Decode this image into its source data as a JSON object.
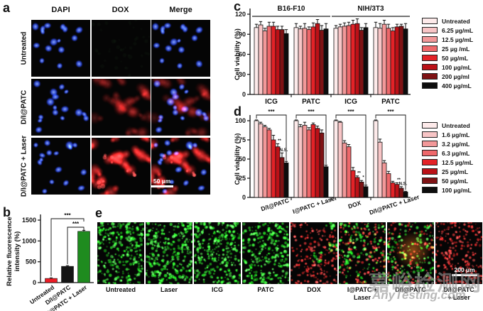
{
  "panels": {
    "a": {
      "letter": "a",
      "columns": [
        "DAPI",
        "DOX",
        "Merge"
      ],
      "rows": [
        "Untreated",
        "D/I@PATC",
        "D/I@PATC + Laser"
      ],
      "scale_bar": "50 µm",
      "image_styles": [
        [
          "blue-nuclei",
          "blank-dark",
          "blue-nuclei"
        ],
        [
          "blue-nuclei",
          "red-dim",
          "merge-dim"
        ],
        [
          "blue-nuclei",
          "red-bright",
          "merge-bright"
        ]
      ]
    },
    "b": {
      "letter": "b"
    },
    "c": {
      "letter": "c"
    },
    "d": {
      "letter": "d"
    },
    "e": {
      "letter": "e",
      "scale_bar": "200 µm",
      "images": [
        {
          "label_lines": [
            "Untreated"
          ],
          "content": "live-green"
        },
        {
          "label_lines": [
            "Laser"
          ],
          "content": "live-green"
        },
        {
          "label_lines": [
            "ICG"
          ],
          "content": "live-green"
        },
        {
          "label_lines": [
            "PATC"
          ],
          "content": "live-green"
        },
        {
          "label_lines": [
            "DOX"
          ],
          "content": "dead-red-sparse-green"
        },
        {
          "label_lines": [
            "I@PATC + Laser"
          ],
          "content": "mixed-live-dead"
        },
        {
          "label_lines": [
            "D/I@PATC"
          ],
          "content": "mixed-live-dead-orange"
        },
        {
          "label_lines": [
            "D/I@PATC",
            "+ Laser"
          ],
          "content": "dead-red"
        }
      ]
    }
  },
  "chart_data": [
    {
      "id": "b",
      "type": "bar",
      "ylabel_lines": [
        "Relative fluorescence",
        "intensity  (%)"
      ],
      "categories": [
        "Untreated",
        "D/I@PATC",
        "D/I@PATC + Laser"
      ],
      "values": [
        100,
        390,
        1230
      ],
      "errors": [
        15,
        18,
        25
      ],
      "bar_colors": [
        "#ee1c25",
        "#141414",
        "#1f8b1f"
      ],
      "ylim": [
        0,
        1500
      ],
      "yticks": [
        0,
        500,
        1000,
        1500
      ],
      "grid": false,
      "significance": [
        {
          "from": 0,
          "to": 2,
          "label": "***"
        },
        {
          "from": 1,
          "to": 2,
          "label": "***"
        }
      ]
    },
    {
      "id": "c",
      "type": "grouped-bar",
      "ylabel": "Cell viability (%)",
      "ylim": [
        0,
        120
      ],
      "yticks": [
        0,
        30,
        60,
        90,
        120
      ],
      "grid": false,
      "legend_position": "right",
      "legend": [
        "Untreated",
        "6.25 µg/mL",
        "12.5 µg/mL",
        "25 µg /mL",
        "50 µg/mL",
        "100 µg/mL",
        "200 µg/ml",
        "400 µg/mL"
      ],
      "palette": [
        "#fdeaea",
        "#f8c5c6",
        "#f29899",
        "#ee686b",
        "#e32227",
        "#bb1117",
        "#7e1214",
        "#0d0d0d"
      ],
      "section_headers": [
        {
          "label": "B16-F10",
          "span": [
            0,
            1
          ]
        },
        {
          "label": "NIH/3T3",
          "span": [
            2,
            3
          ]
        }
      ],
      "groups": [
        {
          "label": "ICG",
          "values": [
            100,
            104,
            95,
            102,
            102,
            97,
            97,
            91
          ],
          "errors": [
            5,
            5,
            4,
            6,
            6,
            5,
            5,
            6
          ]
        },
        {
          "label": "PATC",
          "values": [
            100,
            98,
            99,
            97,
            101,
            106,
            96,
            98
          ],
          "errors": [
            6,
            4,
            7,
            4,
            6,
            6,
            7,
            8
          ]
        },
        {
          "label": "ICG",
          "values": [
            99,
            101,
            102,
            103,
            105,
            106,
            96,
            100
          ],
          "errors": [
            4,
            4,
            5,
            5,
            6,
            7,
            4,
            6
          ]
        },
        {
          "label": "PATC",
          "values": [
            100,
            99,
            105,
            99,
            95,
            101,
            102,
            98
          ],
          "errors": [
            8,
            7,
            6,
            6,
            5,
            4,
            3,
            8
          ]
        }
      ]
    },
    {
      "id": "d",
      "type": "grouped-bar",
      "ylabel": "Cell viability (%)",
      "ylim": [
        0,
        100
      ],
      "yticks": [
        0,
        25,
        50,
        75,
        100
      ],
      "grid": false,
      "legend_position": "right",
      "legend": [
        "Untreated",
        "1.6 µg/mL",
        "3.2 µg/mL",
        "6.3 µg/mL",
        "12.5 µg/mL",
        "25 µg/mL",
        "50 µg/mL",
        "100 µg/mL"
      ],
      "palette": [
        "#fdeaea",
        "#f8c5c6",
        "#f29899",
        "#ee686b",
        "#e32227",
        "#bb1117",
        "#7e1214",
        "#0d0d0d"
      ],
      "groups": [
        {
          "label": "D/I@PATC",
          "values": [
            100,
            96,
            92,
            88,
            75,
            66,
            52,
            45
          ],
          "errors": [
            1,
            2,
            2,
            2,
            6,
            4,
            6,
            2
          ],
          "bracket": "***",
          "marks": [
            {
              "bar": 5,
              "text": "**"
            },
            {
              "bar": 6,
              "text": "N.S."
            }
          ]
        },
        {
          "label": "I@PATC + Laser",
          "values": [
            100,
            92,
            94,
            88,
            95,
            90,
            84,
            40
          ],
          "errors": [
            1,
            3,
            4,
            3,
            2,
            3,
            4,
            2
          ],
          "bracket": "***",
          "marks": []
        },
        {
          "label": "DOX",
          "values": [
            100,
            98,
            71,
            66,
            35,
            26,
            20,
            14
          ],
          "errors": [
            1,
            1,
            3,
            3,
            4,
            2,
            2,
            2
          ],
          "bracket": "***",
          "marks": [
            {
              "bar": 5,
              "text": "**"
            },
            {
              "bar": 6,
              "text": "*"
            }
          ]
        },
        {
          "label": "D/I@PATC + Laser",
          "values": [
            100,
            72,
            45,
            31,
            19,
            17,
            12,
            7
          ],
          "errors": [
            1,
            4,
            3,
            3,
            2,
            2,
            2,
            1
          ],
          "bracket": "***",
          "marks": [
            {
              "bar": 5,
              "text": "**"
            },
            {
              "bar": 6,
              "text": "N.S."
            }
          ]
        }
      ]
    }
  ],
  "watermark": {
    "line1": "嘉峪检测网",
    "line2": "AnyTesting.com"
  }
}
